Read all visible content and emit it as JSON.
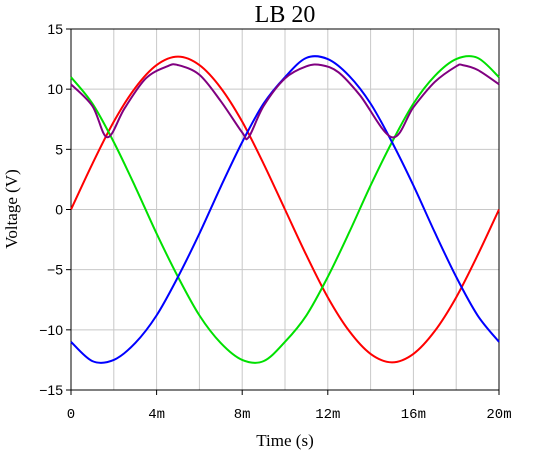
{
  "chart_data": {
    "type": "line",
    "title": "LB 20",
    "xlabel": "Time (s)",
    "ylabel": "Voltage (V)",
    "xlim": [
      0,
      0.02
    ],
    "ylim": [
      -15,
      15
    ],
    "x_ticks": [
      0,
      0.004,
      0.008,
      0.012,
      0.016,
      0.02
    ],
    "x_tick_labels": [
      "0",
      "4m",
      "8m",
      "12m",
      "16m",
      "20m"
    ],
    "y_ticks": [
      -15,
      -10,
      -5,
      0,
      5,
      10,
      15
    ],
    "y_tick_labels": [
      "−15",
      "−10",
      "−5",
      "0",
      "5",
      "10",
      "15"
    ],
    "grid": true,
    "series": [
      {
        "color": "#ff0000",
        "x": [
          0,
          0.001,
          0.002,
          0.003,
          0.004,
          0.005,
          0.006,
          0.007,
          0.008,
          0.009,
          0.01,
          0.011,
          0.012,
          0.013,
          0.014,
          0.015,
          0.016,
          0.017,
          0.018,
          0.019,
          0.02
        ],
        "values": [
          0,
          3.8,
          7.3,
          10.1,
          12.0,
          12.7,
          12.0,
          10.1,
          7.3,
          3.8,
          0,
          -3.8,
          -7.3,
          -10.1,
          -12.0,
          -12.7,
          -12.0,
          -10.1,
          -7.3,
          -3.8,
          0
        ]
      },
      {
        "color": "#00e000",
        "x": [
          0,
          0.001,
          0.002,
          0.003,
          0.004,
          0.005,
          0.006,
          0.007,
          0.008,
          0.009,
          0.01,
          0.011,
          0.012,
          0.013,
          0.014,
          0.015,
          0.016,
          0.017,
          0.018,
          0.019,
          0.02
        ],
        "values": [
          11.0,
          8.8,
          5.6,
          1.9,
          -2.0,
          -5.6,
          -8.8,
          -11.1,
          -12.5,
          -12.6,
          -11.0,
          -8.8,
          -5.6,
          -1.9,
          2.0,
          5.6,
          8.8,
          11.1,
          12.5,
          12.6,
          11.0
        ]
      },
      {
        "color": "#0000ff",
        "x": [
          0,
          0.001,
          0.002,
          0.003,
          0.004,
          0.005,
          0.006,
          0.007,
          0.008,
          0.009,
          0.01,
          0.011,
          0.012,
          0.013,
          0.014,
          0.015,
          0.016,
          0.017,
          0.018,
          0.019,
          0.02
        ],
        "values": [
          -11.0,
          -12.6,
          -12.5,
          -11.1,
          -8.8,
          -5.6,
          -2.0,
          1.9,
          5.6,
          8.8,
          11.0,
          12.6,
          12.5,
          11.1,
          8.8,
          5.6,
          2.0,
          -1.9,
          -5.6,
          -8.8,
          -11.0
        ]
      },
      {
        "color": "#800080",
        "x": [
          0,
          0.001,
          0.0017,
          0.0025,
          0.0035,
          0.0045,
          0.005,
          0.006,
          0.007,
          0.008,
          0.0083,
          0.009,
          0.01,
          0.011,
          0.0117,
          0.0125,
          0.0135,
          0.015,
          0.016,
          0.017,
          0.018,
          0.0183,
          0.019,
          0.02
        ],
        "values": [
          10.4,
          8.6,
          6.0,
          8.4,
          10.9,
          11.9,
          12.0,
          11.2,
          9.0,
          6.4,
          6.0,
          8.6,
          10.9,
          11.9,
          12.0,
          11.4,
          9.5,
          6.0,
          8.5,
          10.6,
          11.9,
          12.0,
          11.6,
          10.4
        ]
      }
    ]
  }
}
